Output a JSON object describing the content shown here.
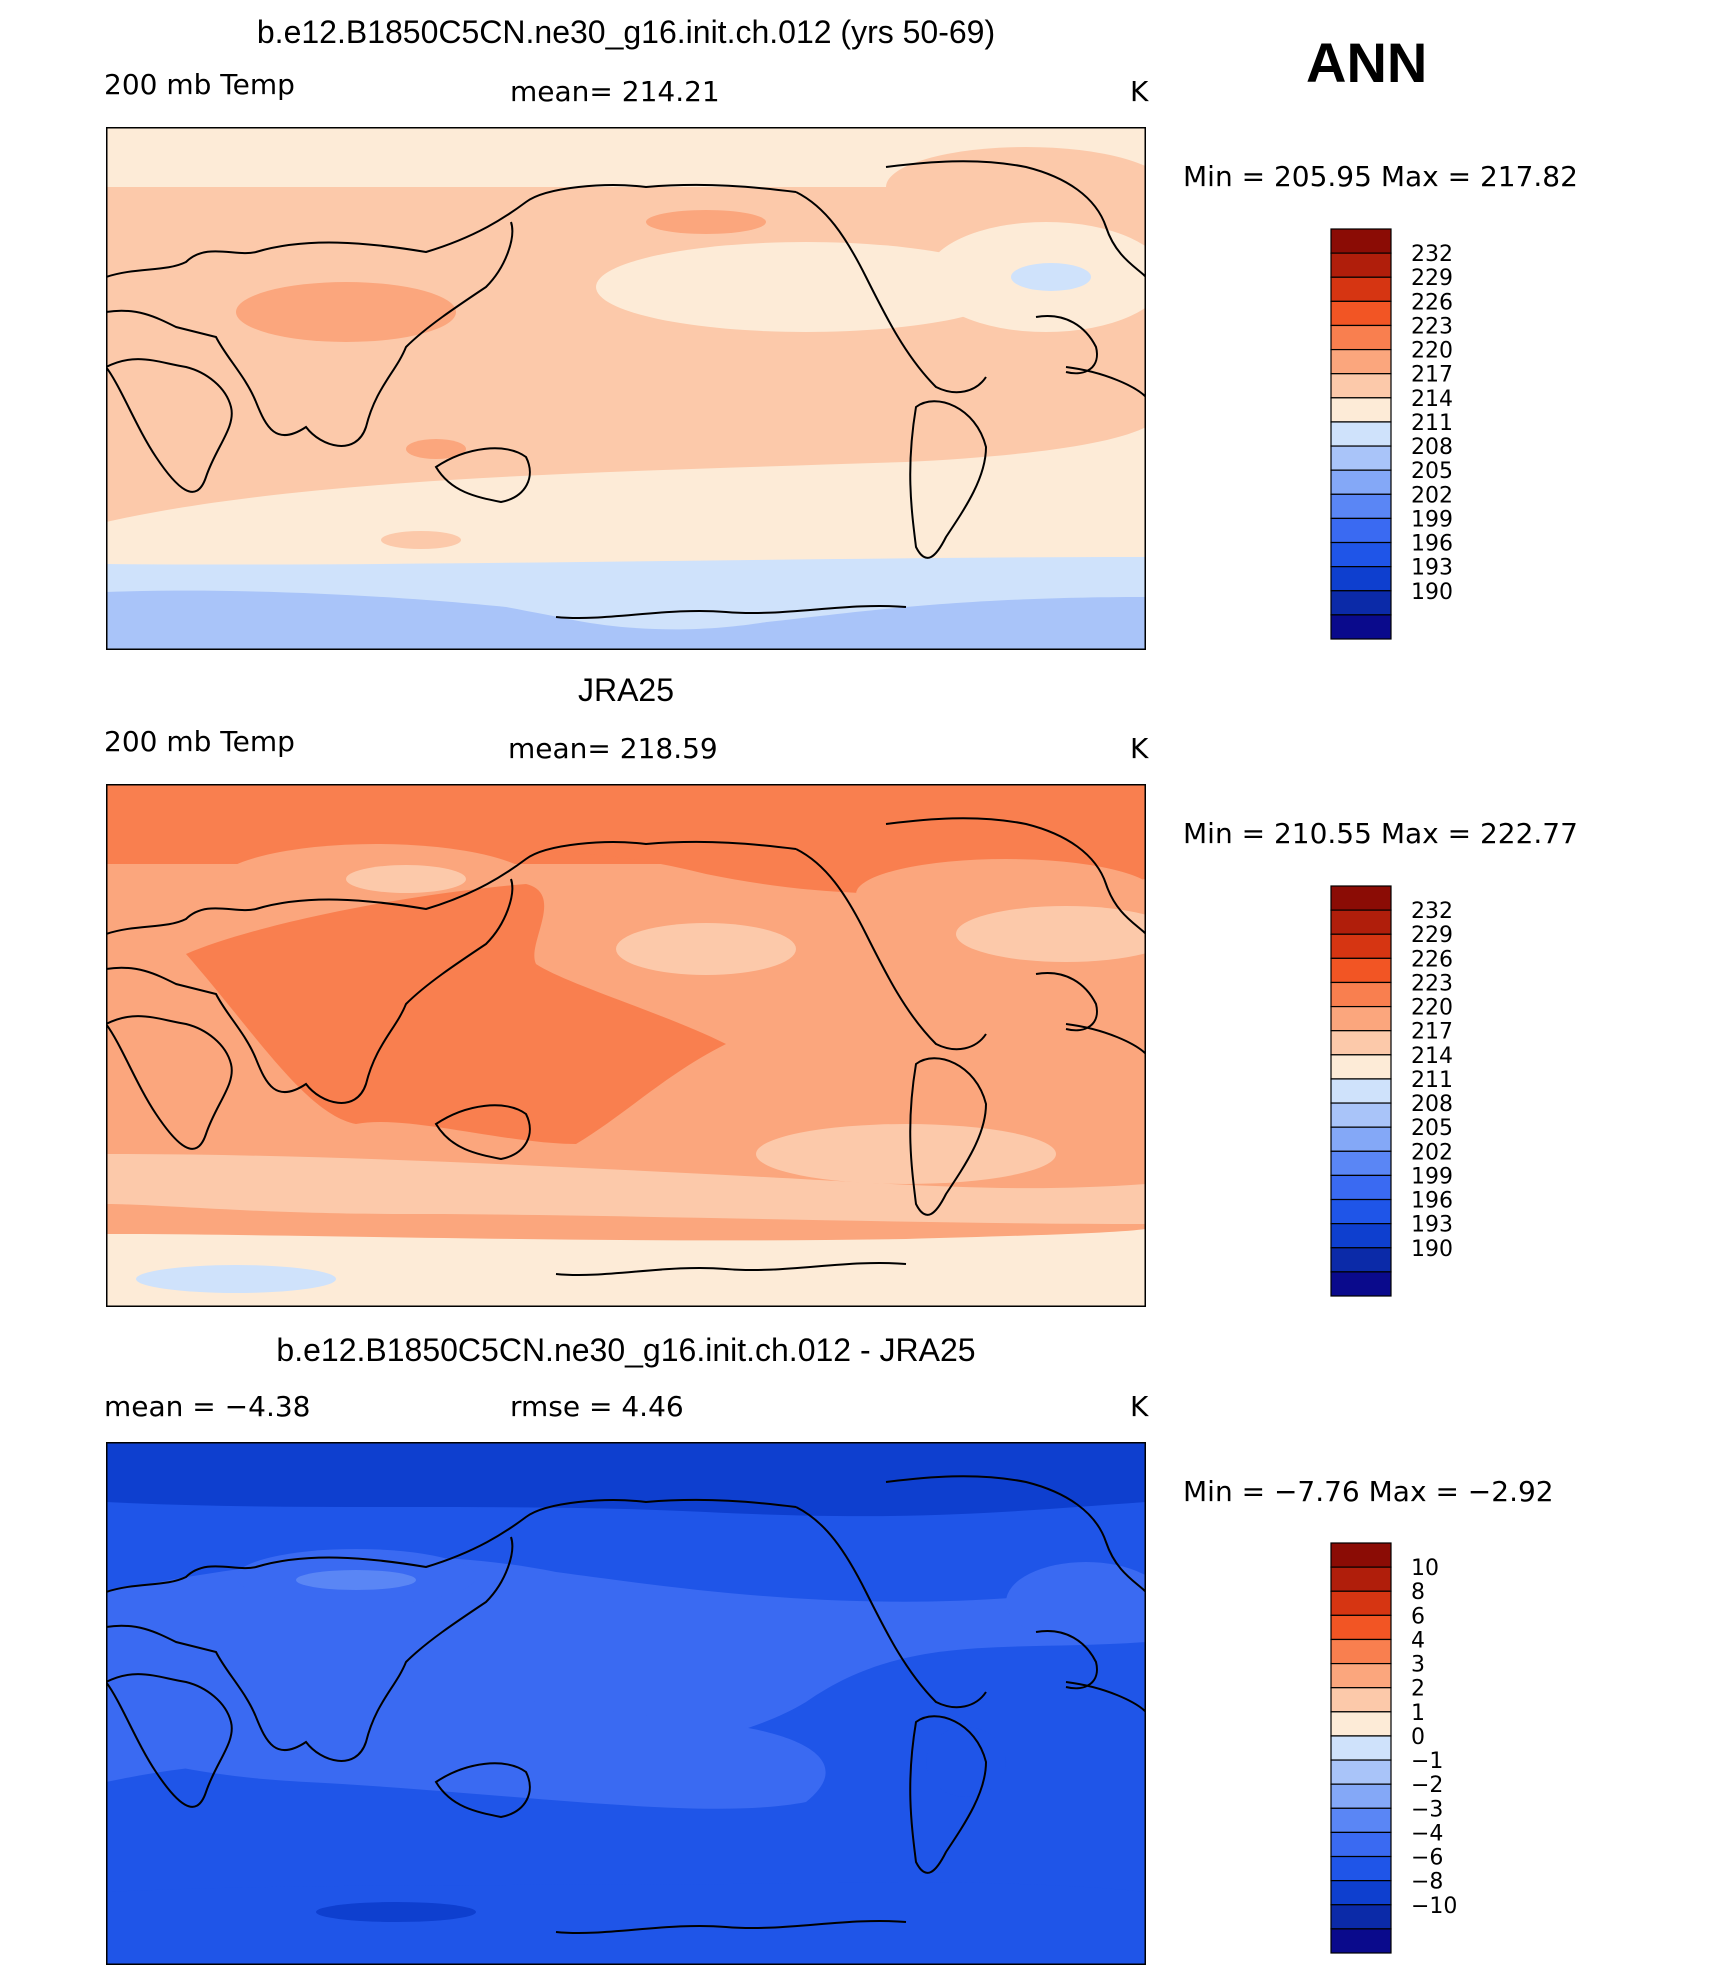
{
  "season": "ANN",
  "palette": {
    "ramp": [
      "#0a0a8c",
      "#0b2aa8",
      "#0e3fcf",
      "#1f55e8",
      "#3a6af2",
      "#5a86f5",
      "#84a8f7",
      "#a9c4f9",
      "#cfe2fb",
      "#fdebd7",
      "#fcc9aa",
      "#fba67d",
      "#f97f4f",
      "#f25524",
      "#d63512",
      "#b01e0b",
      "#8b0c05"
    ]
  },
  "chart_data": [
    {
      "type": "heatmap",
      "title": "b.e12.B1850C5CN.ne30_g16.init.ch.012 (yrs 50-69)",
      "left_label": "200 mb Temp",
      "center_label": "mean= 214.21",
      "units": "K",
      "min_max": "Min  =  205.95  Max  =  217.82",
      "levels": [
        "232",
        "229",
        "226",
        "223",
        "220",
        "217",
        "214",
        "211",
        "208",
        "205",
        "202",
        "199",
        "196",
        "193",
        "190"
      ],
      "mean": 214.21,
      "min": 205.95,
      "max": 217.82,
      "field": "model 200 mb temperature, annual mean"
    },
    {
      "type": "heatmap",
      "title": "JRA25",
      "left_label": "200 mb Temp",
      "center_label": "mean= 218.59",
      "units": "K",
      "min_max": "Min  =  210.55  Max  =  222.77",
      "levels": [
        "232",
        "229",
        "226",
        "223",
        "220",
        "217",
        "214",
        "211",
        "208",
        "205",
        "202",
        "199",
        "196",
        "193",
        "190"
      ],
      "mean": 218.59,
      "min": 210.55,
      "max": 222.77,
      "field": "reanalysis 200 mb temperature, annual mean"
    },
    {
      "type": "heatmap",
      "title": "b.e12.B1850C5CN.ne30_g16.init.ch.012 - JRA25",
      "left_label": "mean  =    −4.38",
      "center_label": "rmse  =     4.46",
      "units": "K",
      "min_max": "Min  =    −7.76  Max  =    −2.92",
      "levels": [
        "10",
        "8",
        "6",
        "4",
        "3",
        "2",
        "1",
        "0",
        "−1",
        "−2",
        "−3",
        "−4",
        "−6",
        "−8",
        "−10"
      ],
      "mean": -4.38,
      "rmse": 4.46,
      "min": -7.76,
      "max": -2.92,
      "field": "model minus reanalysis difference"
    }
  ]
}
